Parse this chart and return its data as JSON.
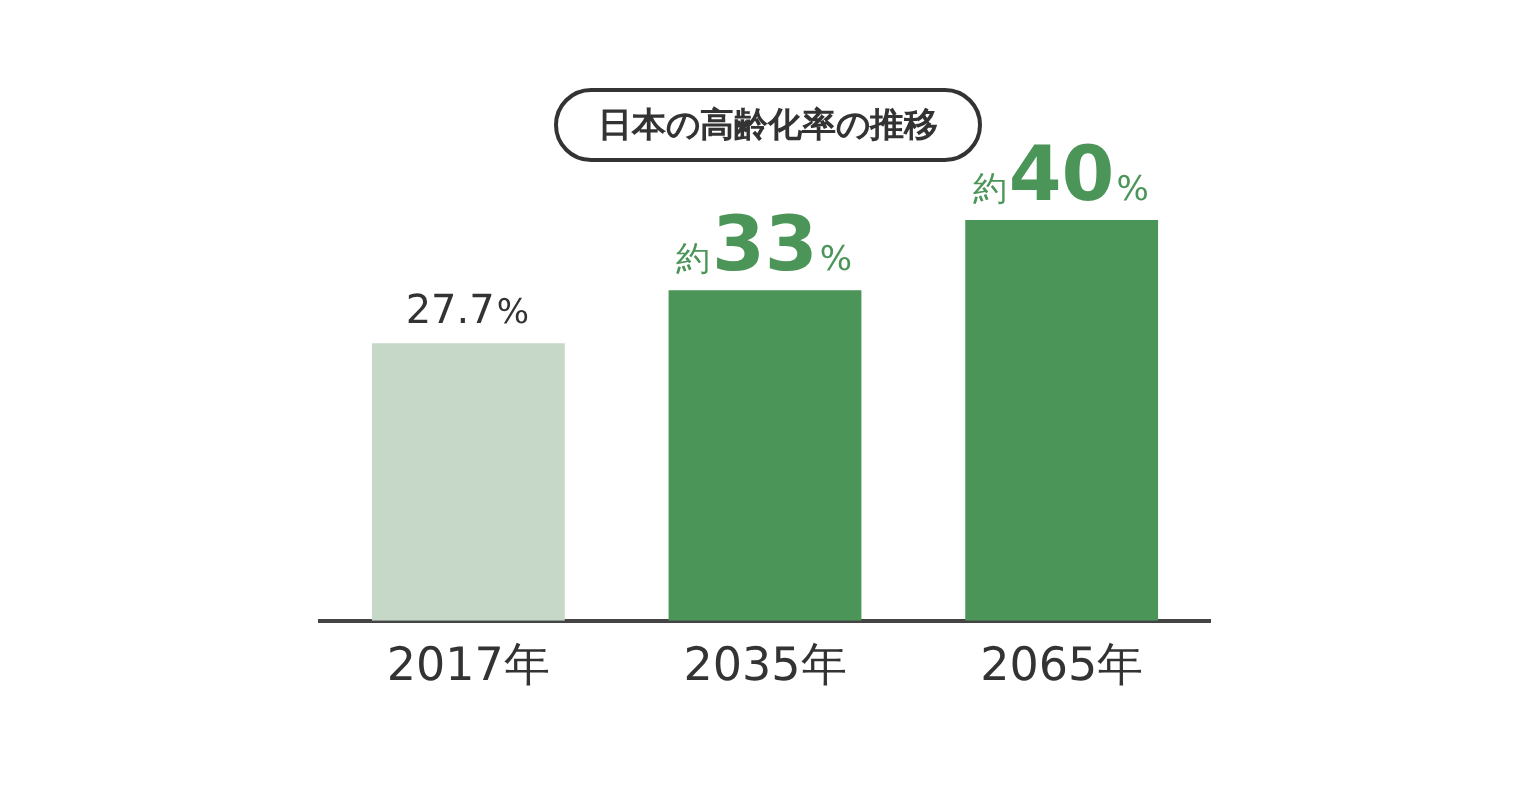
{
  "chart_data": {
    "type": "bar",
    "title": "日本の高齢化率の推移",
    "categories": [
      "2017年",
      "2035年",
      "2065年"
    ],
    "values": [
      27.7,
      33,
      40
    ],
    "colors": [
      "#c6d9c9",
      "#4b9558",
      "#4b9558"
    ],
    "value_labels": [
      "27.7%",
      "約33%",
      "約40%"
    ],
    "tick_labels": "x",
    "grid": false,
    "legend": false
  }
}
